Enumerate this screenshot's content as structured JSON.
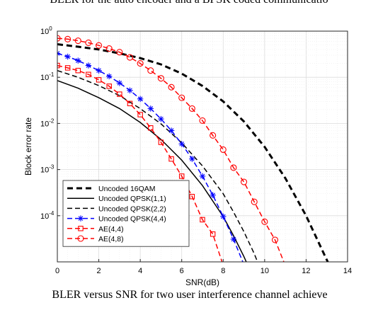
{
  "page": {
    "top_text": "BLER for the auto encoder and a BPSK coded communicatio",
    "caption": "BLER versus SNR for two user interference channel achieve"
  },
  "chart_data": {
    "type": "line",
    "title": "",
    "xlabel": "SNR(dB)",
    "ylabel": "Block error rate",
    "xlim": [
      0,
      14
    ],
    "ylim_log10": [
      -5,
      0
    ],
    "y_scale": "log",
    "grid": true,
    "minor_grid": true,
    "legend_position": "bottom-left",
    "x_ticks": [
      "0",
      "2",
      "4",
      "6",
      "8",
      "10",
      "12",
      "14"
    ],
    "y_ticks": [
      {
        "base": "10",
        "exp": "0",
        "value": 1
      },
      {
        "base": "10",
        "exp": "-1",
        "value": 0.1
      },
      {
        "base": "10",
        "exp": "-2",
        "value": 0.01
      },
      {
        "base": "10",
        "exp": "-3",
        "value": 0.001
      },
      {
        "base": "10",
        "exp": "-4",
        "value": 0.0001
      }
    ],
    "series": [
      {
        "name": "Uncoded 16QAM",
        "color": "#000000",
        "dash": "dashed-thick",
        "marker": "none",
        "x": [
          0,
          1,
          2,
          3,
          4,
          5,
          6,
          7,
          8,
          9,
          10,
          11,
          12,
          13,
          14
        ],
        "y": [
          0.52,
          0.46,
          0.4,
          0.33,
          0.26,
          0.19,
          0.12,
          0.065,
          0.03,
          0.011,
          0.0031,
          0.00065,
          0.0001,
          1.1e-05,
          1.3e-06
        ]
      },
      {
        "name": "Uncoded QPSK(1,1)",
        "color": "#000000",
        "dash": "solid",
        "marker": "none",
        "x": [
          0,
          1,
          2,
          3,
          4,
          5,
          6,
          7,
          8,
          8.5,
          9,
          9.5,
          9.9
        ],
        "y": [
          0.085,
          0.058,
          0.036,
          0.021,
          0.0105,
          0.0045,
          0.0016,
          0.00045,
          9.6e-05,
          3.7e-05,
          1.3e-05,
          4.1e-06,
          1.6e-06
        ]
      },
      {
        "name": "Uncoded QPSK(2,2)",
        "color": "#000000",
        "dash": "dashed",
        "marker": "none",
        "x": [
          0,
          1,
          2,
          3,
          4,
          5,
          6,
          7,
          8,
          8.5,
          9,
          9.5,
          10,
          10.1
        ],
        "y": [
          0.14,
          0.1,
          0.066,
          0.04,
          0.021,
          0.0098,
          0.0038,
          0.0012,
          0.0003,
          0.00012,
          4.5e-05,
          1.5e-05,
          4.1e-06,
          2.5e-06
        ]
      },
      {
        "name": "Uncoded QPSK(4,4)",
        "color": "#0000ff",
        "dash": "dashed",
        "marker": "asterisk",
        "x": [
          0,
          0.5,
          1,
          1.5,
          2,
          2.5,
          3,
          3.5,
          4,
          4.5,
          5,
          5.5,
          6,
          6.5,
          7,
          7.5,
          8,
          8.5,
          9,
          9.5,
          10
        ],
        "y": [
          0.33,
          0.28,
          0.23,
          0.18,
          0.14,
          0.105,
          0.075,
          0.052,
          0.034,
          0.021,
          0.0125,
          0.007,
          0.0036,
          0.0017,
          0.00072,
          0.00028,
          9.6e-05,
          3.1e-05,
          8.7e-06,
          2.5e-06,
          1.6e-06
        ]
      },
      {
        "name": "AE(4,4)",
        "color": "#ff0000",
        "dash": "dashed",
        "marker": "square",
        "x": [
          0,
          0.5,
          1,
          1.5,
          2,
          2.5,
          3,
          3.5,
          4,
          4.5,
          5,
          5.5,
          6,
          6.5,
          7,
          7.5,
          8,
          8.5
        ],
        "y": [
          0.18,
          0.16,
          0.14,
          0.115,
          0.088,
          0.064,
          0.043,
          0.027,
          0.0155,
          0.008,
          0.0039,
          0.0017,
          0.00072,
          0.00026,
          8.2e-05,
          4e-05,
          8.4e-06,
          2.2e-06
        ]
      },
      {
        "name": "AE(4,8)",
        "color": "#ff0000",
        "dash": "dashed",
        "marker": "circle",
        "x": [
          0,
          0.5,
          1,
          1.5,
          2,
          2.5,
          3,
          3.5,
          4,
          4.5,
          5,
          5.5,
          6,
          6.5,
          7,
          7.5,
          8,
          8.5,
          9,
          9.5,
          10,
          10.5,
          11
        ],
        "y": [
          0.7,
          0.67,
          0.62,
          0.56,
          0.49,
          0.42,
          0.35,
          0.27,
          0.2,
          0.14,
          0.095,
          0.061,
          0.036,
          0.021,
          0.0115,
          0.0055,
          0.0027,
          0.0011,
          0.00054,
          0.0002,
          7.4e-05,
          3e-05,
          8.3e-06
        ]
      }
    ]
  }
}
